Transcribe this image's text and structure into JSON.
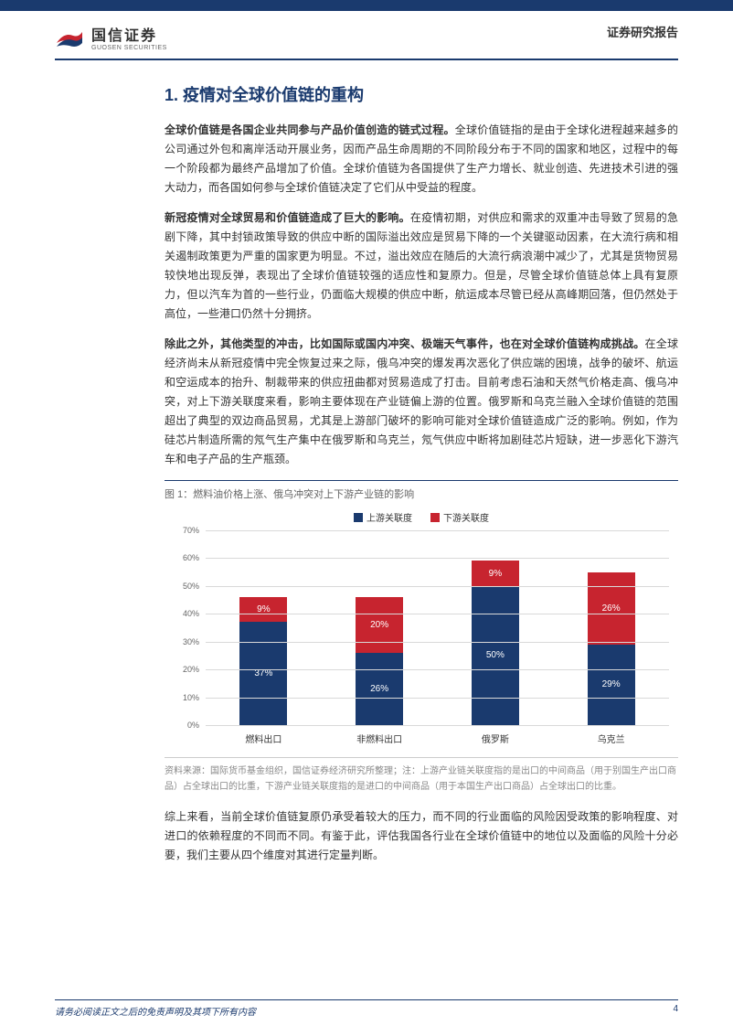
{
  "header": {
    "company_cn": "国信证券",
    "company_en": "GUOSEN SECURITIES",
    "report_type": "证券研究报告",
    "logo_colors": {
      "red": "#c7242f",
      "blue": "#1a3a6e"
    }
  },
  "section": {
    "title": "1. 疫情对全球价值链的重构",
    "para1_bold": "全球价值链是各国企业共同参与产品价值创造的链式过程。",
    "para1_rest": "全球价值链指的是由于全球化进程越来越多的公司通过外包和离岸活动开展业务，因而产品生命周期的不同阶段分布于不同的国家和地区，过程中的每一个阶段都为最终产品增加了价值。全球价值链为各国提供了生产力增长、就业创造、先进技术引进的强大动力，而各国如何参与全球价值链决定了它们从中受益的程度。",
    "para2_bold": "新冠疫情对全球贸易和价值链造成了巨大的影响。",
    "para2_rest": "在疫情初期，对供应和需求的双重冲击导致了贸易的急剧下降，其中封锁政策导致的供应中断的国际溢出效应是贸易下降的一个关键驱动因素，在大流行病和相关遏制政策更为严重的国家更为明显。不过，溢出效应在随后的大流行病浪潮中减少了，尤其是货物贸易较快地出现反弹，表现出了全球价值链较强的适应性和复原力。但是，尽管全球价值链总体上具有复原力，但以汽车为首的一些行业，仍面临大规模的供应中断，航运成本尽管已经从高峰期回落，但仍然处于高位，一些港口仍然十分拥挤。",
    "para3_bold": "除此之外，其他类型的冲击，比如国际或国内冲突、极端天气事件，也在对全球价值链构成挑战。",
    "para3_rest": "在全球经济尚未从新冠疫情中完全恢复过来之际，俄乌冲突的爆发再次恶化了供应端的困境，战争的破坏、航运和空运成本的抬升、制裁带来的供应扭曲都对贸易造成了打击。目前考虑石油和天然气价格走高、俄乌冲突，对上下游关联度来看，影响主要体现在产业链偏上游的位置。俄罗斯和乌克兰融入全球价值链的范围超出了典型的双边商品贸易，尤其是上游部门破坏的影响可能对全球价值链造成广泛的影响。例如，作为硅芯片制造所需的氖气生产集中在俄罗斯和乌克兰，氖气供应中断将加剧硅芯片短缺，进一步恶化下游汽车和电子产品的生产瓶颈。"
  },
  "figure": {
    "title": "图 1：燃料油价格上涨、俄乌冲突对上下游产业链的影响",
    "legend_upstream": "上游关联度",
    "legend_downstream": "下游关联度",
    "color_upstream": "#1a3a6e",
    "color_downstream": "#c7242f",
    "grid_color": "#d9d9d9",
    "background_color": "#ffffff",
    "ylim_max": 70,
    "ytick_step": 10,
    "yticks": [
      0,
      10,
      20,
      30,
      40,
      50,
      60,
      70
    ],
    "categories": [
      "燃料出口",
      "非燃料出口",
      "俄罗斯",
      "乌克兰"
    ],
    "upstream_values": [
      37,
      26,
      50,
      29
    ],
    "downstream_values": [
      9,
      20,
      9,
      26
    ],
    "upstream_labels": [
      "37%",
      "26%",
      "50%",
      "29%"
    ],
    "downstream_labels": [
      "9%",
      "20%",
      "9%",
      "26%"
    ],
    "caption": "资料来源：国际货币基金组织，国信证券经济研究所整理；注：上游产业链关联度指的是出口的中间商品（用于别国生产出口商品）占全球出口的比重，下游产业链关联度指的是进口的中间商品（用于本国生产出口商品）占全球出口的比重。"
  },
  "conclusion": "综上来看，当前全球价值链复原仍承受着较大的压力，而不同的行业面临的风险因受政策的影响程度、对进口的依赖程度的不同而不同。有鉴于此，评估我国各行业在全球价值链中的地位以及面临的风险十分必要，我们主要从四个维度对其进行定量判断。",
  "footer": {
    "disclaimer": "请务必阅读正文之后的免责声明及其项下所有内容",
    "page": "4"
  }
}
